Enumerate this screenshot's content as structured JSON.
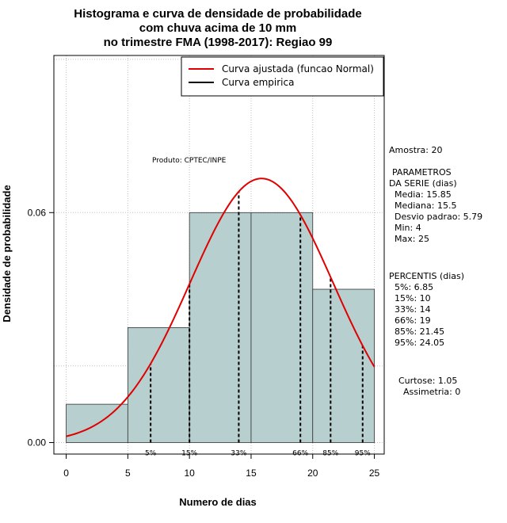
{
  "chart_data": {
    "type": "bar",
    "title_lines": [
      "Histograma e curva de densidade de probabilidade",
      "com chuva acima de 10 mm",
      "no trimestre FMA (1998-2017): Regiao 99"
    ],
    "xlabel": "Numero de dias",
    "ylabel": "Densidade de probabilidade",
    "xlim": [
      -1,
      25.8
    ],
    "ylim": [
      -0.003,
      0.101
    ],
    "x_ticks": [
      0,
      5,
      10,
      15,
      20,
      25
    ],
    "y_ticks": [
      0.0,
      0.06
    ],
    "y_tick_labels": [
      "0.00",
      "0.06"
    ],
    "x_grid": [
      0,
      5,
      10,
      15,
      20,
      25
    ],
    "y_grid": [
      0.0,
      0.02,
      0.06,
      0.1
    ],
    "bins": [
      {
        "start": 0,
        "end": 5,
        "density": 0.01
      },
      {
        "start": 5,
        "end": 10,
        "density": 0.03
      },
      {
        "start": 10,
        "end": 15,
        "density": 0.06
      },
      {
        "start": 15,
        "end": 20,
        "density": 0.06
      },
      {
        "start": 20,
        "end": 25,
        "density": 0.04
      }
    ],
    "normal_fit": {
      "mean": 15.85,
      "sd": 5.79,
      "x_range": [
        0,
        25
      ]
    },
    "percentile_lines": [
      {
        "label": "5%",
        "x": 6.85
      },
      {
        "label": "15%",
        "x": 10
      },
      {
        "label": "33%",
        "x": 14
      },
      {
        "label": "66%",
        "x": 19
      },
      {
        "label": "85%",
        "x": 21.45
      },
      {
        "label": "95%",
        "x": 24.05
      }
    ],
    "legend": {
      "position": "top-right",
      "entries": [
        {
          "label": "Curva ajustada (funcao Normal)",
          "color": "#e00000"
        },
        {
          "label": "Curva empirica",
          "color": "#000000"
        }
      ]
    },
    "annotations": {
      "produto": "Produto: CPTEC/INPE"
    }
  },
  "stats": {
    "amostra": "Amostra: 20",
    "params_title_1": "PARAMETROS",
    "params_title_2": "DA SERIE (dias)",
    "media": "Media: 15.85",
    "mediana": "Mediana: 15.5",
    "desvio": "Desvio padrao: 5.79",
    "min": "Min: 4",
    "max": "Max: 25",
    "percentis_title": "PERCENTIS (dias)",
    "p5": "5%: 6.85",
    "p15": "15%: 10",
    "p33": "33%: 14",
    "p66": "66%: 19",
    "p85": "85%: 21.45",
    "p95": "95%: 24.05",
    "curtose": "Curtose: 1.05",
    "assimetria": "Assimetria: 0"
  },
  "colors": {
    "bar_fill": "#b7cfce",
    "bar_stroke": "#333333",
    "curve": "#e00000",
    "grid": "#bfbfbf"
  }
}
